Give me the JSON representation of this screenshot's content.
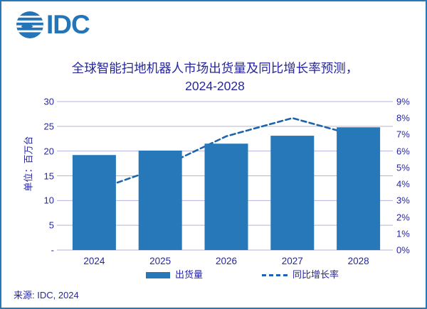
{
  "page": {
    "background": "#ffffff",
    "border_color": "#2778b8"
  },
  "logo": {
    "wordmark": "IDC",
    "icon": "globe-stripes-icon",
    "color": "#2474b8"
  },
  "title": {
    "line1": "全球智能扫地机器人市场出货量及同比增长率预测，",
    "line2": "2024-2028",
    "color": "#2626a0"
  },
  "chart_data": {
    "type": "bar",
    "subtype": "combo-bar-line",
    "title": "全球智能扫地机器人市场出货量及同比增长率预测，2024-2028",
    "categories": [
      "2024",
      "2025",
      "2026",
      "2027",
      "2028"
    ],
    "series": [
      {
        "name": "出货量",
        "type": "bar",
        "axis": "left",
        "values": [
          19.2,
          20.1,
          21.5,
          23.1,
          24.8
        ],
        "color": "#2778b8"
      },
      {
        "name": "同比增长率",
        "type": "line",
        "line_style": "dashed",
        "axis": "right",
        "values": [
          3.6,
          5.0,
          6.9,
          8.0,
          6.9
        ],
        "color": "#1d64ac"
      }
    ],
    "left_axis": {
      "title": "单位：百万台",
      "min": 0,
      "max": 30,
      "step": 5,
      "tick_labels": [
        "30",
        "25",
        "20",
        "15",
        "10",
        "5",
        "-"
      ]
    },
    "right_axis": {
      "min": 0,
      "max": 9,
      "step": 1,
      "tick_labels": [
        "9%",
        "8%",
        "7%",
        "6%",
        "5%",
        "4%",
        "3%",
        "2%",
        "1%",
        "0%"
      ]
    },
    "grid": "horizontal",
    "grid_color": "#b4b4dc",
    "legend_position": "bottom",
    "line_behind_bars": true
  },
  "source": {
    "text": "来源: IDC, 2024"
  }
}
